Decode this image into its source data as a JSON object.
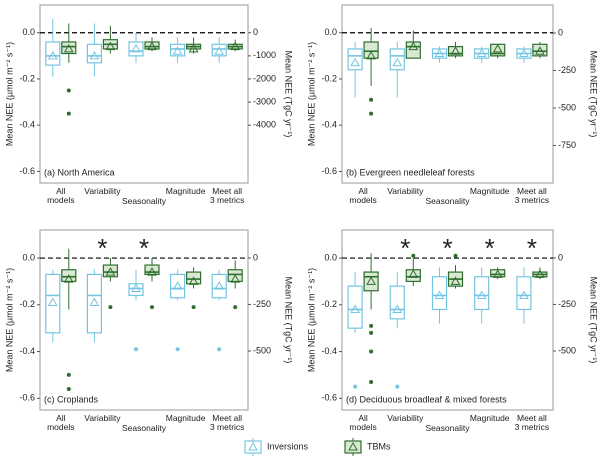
{
  "chart_data": [
    {
      "type": "box",
      "panel_label": "(a) North America",
      "ylabel": "Mean NEE (µmol m⁻² s⁻¹)",
      "y2label": "Mean NEE (TgC yr⁻¹)",
      "categories": [
        "All\nmodels",
        "Variability",
        "Seasonality",
        "Magnitude",
        "Meet all\n3 metrics"
      ],
      "ylim": [
        -0.65,
        0.12
      ],
      "yticks": [
        {
          "value": 0,
          "label": "0.0"
        },
        -0.2,
        -0.4,
        -0.6
      ],
      "y2lim": [
        -6500,
        1200
      ],
      "y2ticks": [
        0,
        -1000,
        -2000,
        -3000,
        -4000
      ],
      "reference_line": 0,
      "significance": [
        null,
        null,
        null,
        null,
        null
      ],
      "series": [
        {
          "name": "Inversions",
          "color": "#74c5e2",
          "fill": "#ffffff",
          "boxes": [
            {
              "low": -0.19,
              "q1": -0.14,
              "median": -0.1,
              "q3": -0.04,
              "high": 0.06,
              "mean": -0.1,
              "outliers": []
            },
            {
              "low": -0.19,
              "q1": -0.13,
              "median": -0.1,
              "q3": -0.05,
              "high": 0.04,
              "mean": -0.1,
              "outliers": []
            },
            {
              "low": -0.13,
              "q1": -0.1,
              "median": -0.08,
              "q3": -0.04,
              "high": 0.0,
              "mean": -0.07,
              "outliers": []
            },
            {
              "low": -0.13,
              "q1": -0.1,
              "median": -0.07,
              "q3": -0.05,
              "high": -0.02,
              "mean": -0.08,
              "outliers": []
            },
            {
              "low": -0.13,
              "q1": -0.1,
              "median": -0.07,
              "q3": -0.05,
              "high": -0.02,
              "mean": -0.08,
              "outliers": []
            }
          ]
        },
        {
          "name": "TBMs",
          "color": "#2f6e2f",
          "fill": "#d9e8d3",
          "boxes": [
            {
              "low": -0.13,
              "q1": -0.09,
              "median": -0.06,
              "q3": -0.04,
              "high": 0.04,
              "mean": -0.07,
              "outliers": [
                -0.25,
                -0.35
              ]
            },
            {
              "low": -0.09,
              "q1": -0.07,
              "median": -0.05,
              "q3": -0.03,
              "high": 0.03,
              "mean": -0.06,
              "outliers": []
            },
            {
              "low": -0.08,
              "q1": -0.07,
              "median": -0.06,
              "q3": -0.04,
              "high": -0.02,
              "mean": -0.06,
              "outliers": []
            },
            {
              "low": -0.09,
              "q1": -0.07,
              "median": -0.06,
              "q3": -0.05,
              "high": -0.02,
              "mean": -0.07,
              "outliers": []
            },
            {
              "low": -0.08,
              "q1": -0.07,
              "median": -0.06,
              "q3": -0.05,
              "high": -0.03,
              "mean": -0.06,
              "outliers": []
            }
          ]
        }
      ]
    },
    {
      "type": "box",
      "panel_label": "(b) Evergreen needleleaf forests",
      "ylabel": "Mean NEE (µmol m⁻² s⁻¹)",
      "y2label": "Mean NEE (TgC yr⁻¹)",
      "categories": [
        "All\nmodels",
        "Variability",
        "Seasonality",
        "Magnitude",
        "Meet all\n3 metrics"
      ],
      "ylim": [
        -0.65,
        0.12
      ],
      "yticks": [
        {
          "value": 0,
          "label": "0.0"
        },
        -0.2,
        -0.4,
        -0.6
      ],
      "y2lim": [
        -1000,
        187
      ],
      "y2ticks": [
        0,
        -250,
        -500,
        -750
      ],
      "reference_line": 0,
      "significance": [
        null,
        null,
        null,
        null,
        null
      ],
      "series": [
        {
          "name": "Inversions",
          "color": "#74c5e2",
          "fill": "#ffffff",
          "boxes": [
            {
              "low": -0.28,
              "q1": -0.16,
              "median": -0.1,
              "q3": -0.07,
              "high": -0.04,
              "mean": -0.13,
              "outliers": []
            },
            {
              "low": -0.28,
              "q1": -0.16,
              "median": -0.1,
              "q3": -0.07,
              "high": -0.04,
              "mean": -0.13,
              "outliers": []
            },
            {
              "low": -0.13,
              "q1": -0.11,
              "median": -0.09,
              "q3": -0.07,
              "high": -0.06,
              "mean": -0.09,
              "outliers": []
            },
            {
              "low": -0.13,
              "q1": -0.11,
              "median": -0.09,
              "q3": -0.07,
              "high": -0.06,
              "mean": -0.09,
              "outliers": []
            },
            {
              "low": -0.13,
              "q1": -0.11,
              "median": -0.09,
              "q3": -0.07,
              "high": -0.06,
              "mean": -0.09,
              "outliers": []
            }
          ]
        },
        {
          "name": "TBMs",
          "color": "#2f6e2f",
          "fill": "#d9e8d3",
          "boxes": [
            {
              "low": -0.23,
              "q1": -0.11,
              "median": -0.08,
              "q3": -0.04,
              "high": 0.02,
              "mean": -0.1,
              "outliers": [
                -0.29,
                -0.35
              ]
            },
            {
              "low": -0.11,
              "q1": -0.11,
              "median": -0.06,
              "q3": -0.04,
              "high": 0.01,
              "mean": -0.06,
              "outliers": []
            },
            {
              "low": -0.11,
              "q1": -0.1,
              "median": -0.09,
              "q3": -0.06,
              "high": -0.04,
              "mean": -0.08,
              "outliers": []
            },
            {
              "low": -0.11,
              "q1": -0.1,
              "median": -0.09,
              "q3": -0.05,
              "high": -0.05,
              "mean": -0.07,
              "outliers": []
            },
            {
              "low": -0.11,
              "q1": -0.1,
              "median": -0.08,
              "q3": -0.05,
              "high": -0.04,
              "mean": -0.08,
              "outliers": []
            }
          ]
        }
      ]
    },
    {
      "type": "box",
      "panel_label": "(c) Croplands",
      "ylabel": "Mean NEE (µmol m⁻² s⁻¹)",
      "y2label": "Mean NEE (TgC yr⁻¹)",
      "categories": [
        "All\nmodels",
        "Variability",
        "Seasonality",
        "Magnitude",
        "Meet all\n3 metrics"
      ],
      "ylim": [
        -0.65,
        0.12
      ],
      "yticks": [
        {
          "value": 0,
          "label": "0.0"
        },
        -0.2,
        -0.4,
        -0.6
      ],
      "y2lim": [
        -817,
        150
      ],
      "y2ticks": [
        0,
        -250,
        -500
      ],
      "reference_line": 0,
      "significance": [
        null,
        "*",
        "*",
        null,
        null
      ],
      "series": [
        {
          "name": "Inversions",
          "color": "#74c5e2",
          "fill": "#ffffff",
          "boxes": [
            {
              "low": -0.36,
              "q1": -0.32,
              "median": -0.16,
              "q3": -0.07,
              "high": -0.05,
              "mean": -0.19,
              "outliers": []
            },
            {
              "low": -0.36,
              "q1": -0.32,
              "median": -0.16,
              "q3": -0.07,
              "high": -0.05,
              "mean": -0.19,
              "outliers": []
            },
            {
              "low": -0.18,
              "q1": -0.16,
              "median": -0.13,
              "q3": -0.11,
              "high": -0.05,
              "mean": -0.13,
              "outliers": [
                -0.39
              ]
            },
            {
              "low": -0.18,
              "q1": -0.17,
              "median": -0.13,
              "q3": -0.07,
              "high": -0.05,
              "mean": -0.12,
              "outliers": [
                -0.39
              ]
            },
            {
              "low": -0.18,
              "q1": -0.17,
              "median": -0.13,
              "q3": -0.07,
              "high": -0.05,
              "mean": -0.12,
              "outliers": [
                -0.39
              ]
            }
          ]
        },
        {
          "name": "TBMs",
          "color": "#2f6e2f",
          "fill": "#d9e8d3",
          "boxes": [
            {
              "low": -0.22,
              "q1": -0.1,
              "median": -0.08,
              "q3": -0.05,
              "high": 0.04,
              "mean": -0.09,
              "outliers": [
                -0.5,
                -0.56
              ]
            },
            {
              "low": -0.1,
              "q1": -0.08,
              "median": -0.06,
              "q3": -0.03,
              "high": 0.0,
              "mean": -0.06,
              "outliers": [
                -0.21
              ]
            },
            {
              "low": -0.1,
              "q1": -0.07,
              "median": -0.06,
              "q3": -0.03,
              "high": 0.0,
              "mean": -0.06,
              "outliers": [
                -0.21
              ]
            },
            {
              "low": -0.13,
              "q1": -0.11,
              "median": -0.09,
              "q3": -0.06,
              "high": -0.04,
              "mean": -0.1,
              "outliers": [
                -0.21
              ]
            },
            {
              "low": -0.13,
              "q1": -0.1,
              "median": -0.07,
              "q3": -0.05,
              "high": -0.01,
              "mean": -0.09,
              "outliers": [
                -0.21
              ]
            }
          ]
        }
      ]
    },
    {
      "type": "box",
      "panel_label": "(d) Deciduous broadleaf & mixed forests",
      "ylabel": "Mean NEE (µmol m⁻² s⁻¹)",
      "y2label": "Mean NEE (TgC yr⁻¹)",
      "categories": [
        "All\nmodels",
        "Variability",
        "Seasonality",
        "Magnitude",
        "Meet all\n3 metrics"
      ],
      "ylim": [
        -0.65,
        0.12
      ],
      "yticks": [
        {
          "value": 0,
          "label": "0.0"
        },
        -0.2,
        -0.4,
        -0.6
      ],
      "y2lim": [
        -817,
        150
      ],
      "y2ticks": [
        0,
        -250,
        -500
      ],
      "reference_line": 0,
      "significance": [
        null,
        "*",
        "*",
        "*",
        "*"
      ],
      "series": [
        {
          "name": "Inversions",
          "color": "#74c5e2",
          "fill": "#ffffff",
          "boxes": [
            {
              "low": -0.32,
              "q1": -0.3,
              "median": -0.22,
              "q3": -0.12,
              "high": -0.06,
              "mean": -0.22,
              "outliers": [
                -0.55
              ]
            },
            {
              "low": -0.3,
              "q1": -0.26,
              "median": -0.22,
              "q3": -0.12,
              "high": -0.06,
              "mean": -0.22,
              "outliers": [
                -0.55
              ]
            },
            {
              "low": -0.28,
              "q1": -0.22,
              "median": -0.16,
              "q3": -0.08,
              "high": -0.04,
              "mean": -0.16,
              "outliers": []
            },
            {
              "low": -0.28,
              "q1": -0.22,
              "median": -0.16,
              "q3": -0.08,
              "high": -0.04,
              "mean": -0.16,
              "outliers": []
            },
            {
              "low": -0.28,
              "q1": -0.22,
              "median": -0.16,
              "q3": -0.08,
              "high": -0.04,
              "mean": -0.16,
              "outliers": []
            }
          ]
        },
        {
          "name": "TBMs",
          "color": "#2f6e2f",
          "fill": "#d9e8d3",
          "boxes": [
            {
              "low": -0.22,
              "q1": -0.14,
              "median": -0.08,
              "q3": -0.06,
              "high": 0.02,
              "mean": -0.1,
              "outliers": [
                -0.29,
                -0.32,
                -0.4,
                -0.53
              ]
            },
            {
              "low": -0.12,
              "q1": -0.1,
              "median": -0.08,
              "q3": -0.05,
              "high": 0.0,
              "mean": -0.07,
              "outliers": [
                0.01
              ]
            },
            {
              "low": -0.13,
              "q1": -0.12,
              "median": -0.09,
              "q3": -0.06,
              "high": -0.03,
              "mean": -0.1,
              "outliers": [
                0.01
              ]
            },
            {
              "low": -0.09,
              "q1": -0.08,
              "median": -0.07,
              "q3": -0.05,
              "high": -0.04,
              "mean": -0.07,
              "outliers": []
            },
            {
              "low": -0.09,
              "q1": -0.08,
              "median": -0.07,
              "q3": -0.06,
              "high": -0.04,
              "mean": -0.07,
              "outliers": []
            }
          ]
        }
      ]
    }
  ]
}
